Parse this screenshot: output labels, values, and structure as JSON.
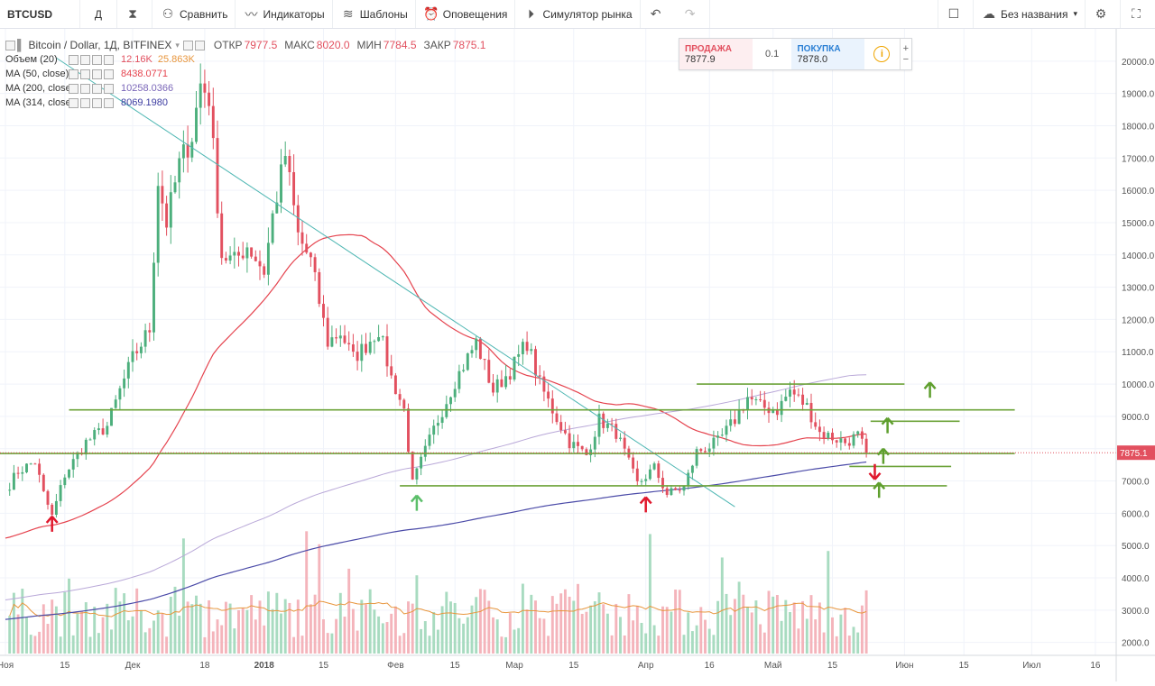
{
  "toolbar": {
    "symbol": "BTCUSD",
    "interval": "Д",
    "compare": "Сравнить",
    "indicators": "Индикаторы",
    "templates": "Шаблоны",
    "alerts": "Оповещения",
    "replay": "Симулятор рынка",
    "layout_name": "Без названия"
  },
  "legend": {
    "title": "Bitcoin / Dollar, 1Д, BITFINEX",
    "open_label": "ОТКР",
    "open": "7977.5",
    "high_label": "МАКС",
    "high": "8020.0",
    "low_label": "МИН",
    "low": "7784.5",
    "close_label": "ЗАКР",
    "close": "7875.1",
    "volume_label": "Объем (20)",
    "volume_value": "12.16K",
    "volume_ma": "25.863K",
    "ma50_label": "MA (50, close)",
    "ma50_value": "8438.0771",
    "ma200_label": "MA (200, close)",
    "ma200_value": "10258.0366",
    "ma314_label": "MA (314, close)",
    "ma314_value": "8069.1980"
  },
  "trade_panel": {
    "sell_label": "ПРОДАЖА",
    "sell_price": "7877.9",
    "qty": "0.1",
    "buy_label": "ПОКУПКА",
    "buy_price": "7878.0",
    "plus": "+",
    "minus": "−"
  },
  "colors": {
    "up": "#4caf7c",
    "down": "#e2505f",
    "ma50": "#e5434e",
    "ma200": "#b9a8d8",
    "ma314": "#4b4ba8",
    "level": "#6da33a",
    "trend": "#4fb7b3"
  },
  "chart_data": {
    "type": "candlestick",
    "title": "Bitcoin / Dollar, 1Д, BITFINEX",
    "ylim": [
      1600,
      21000
    ],
    "yticks": [
      "2000.0",
      "3000.0",
      "4000.0",
      "5000.0",
      "6000.0",
      "7000.0",
      "8000.0",
      "9000.0",
      "10000.0",
      "11000.0",
      "12000.0",
      "13000.0",
      "14000.0",
      "15000.0",
      "16000.0",
      "17000.0",
      "18000.0",
      "19000.0",
      "20000.0"
    ],
    "ytick_values": [
      2000,
      3000,
      4000,
      5000,
      6000,
      7000,
      8000,
      9000,
      10000,
      11000,
      12000,
      13000,
      14000,
      15000,
      16000,
      17000,
      18000,
      19000,
      20000
    ],
    "xticks": [
      {
        "label": "Ноя",
        "date": "2017-11-01"
      },
      {
        "label": "15",
        "date": "2017-11-15"
      },
      {
        "label": "Дек",
        "date": "2017-12-01"
      },
      {
        "label": "18",
        "date": "2017-12-18"
      },
      {
        "label": "2018",
        "date": "2018-01-01"
      },
      {
        "label": "15",
        "date": "2018-01-15"
      },
      {
        "label": "Фев",
        "date": "2018-02-01"
      },
      {
        "label": "15",
        "date": "2018-02-15"
      },
      {
        "label": "Мар",
        "date": "2018-03-01"
      },
      {
        "label": "15",
        "date": "2018-03-15"
      },
      {
        "label": "Апр",
        "date": "2018-04-01"
      },
      {
        "label": "16",
        "date": "2018-04-16"
      },
      {
        "label": "Май",
        "date": "2018-05-01"
      },
      {
        "label": "15",
        "date": "2018-05-15"
      },
      {
        "label": "Июн",
        "date": "2018-06-01"
      },
      {
        "label": "15",
        "date": "2018-06-15"
      },
      {
        "label": "Июл",
        "date": "2018-07-01"
      },
      {
        "label": "16",
        "date": "2018-07-16"
      }
    ],
    "last_price_label": "7875.1",
    "last_price": 7875.1,
    "close_anchors": [
      [
        "2017-11-01",
        6700
      ],
      [
        "2017-11-04",
        7300
      ],
      [
        "2017-11-08",
        7600
      ],
      [
        "2017-11-10",
        6600
      ],
      [
        "2017-11-12",
        5900
      ],
      [
        "2017-11-15",
        7200
      ],
      [
        "2017-11-20",
        8200
      ],
      [
        "2017-11-25",
        8700
      ],
      [
        "2017-11-28",
        9800
      ],
      [
        "2017-12-01",
        10800
      ],
      [
        "2017-12-05",
        11700
      ],
      [
        "2017-12-07",
        16300
      ],
      [
        "2017-12-09",
        15000
      ],
      [
        "2017-12-12",
        16800
      ],
      [
        "2017-12-15",
        17700
      ],
      [
        "2017-12-17",
        19300
      ],
      [
        "2017-12-19",
        18900
      ],
      [
        "2017-12-22",
        14000
      ],
      [
        "2017-12-25",
        13800
      ],
      [
        "2017-12-28",
        14300
      ],
      [
        "2018-01-01",
        13500
      ],
      [
        "2018-01-03",
        15200
      ],
      [
        "2018-01-06",
        17100
      ],
      [
        "2018-01-09",
        14600
      ],
      [
        "2018-01-12",
        13800
      ],
      [
        "2018-01-16",
        11300
      ],
      [
        "2018-01-19",
        11600
      ],
      [
        "2018-01-22",
        10800
      ],
      [
        "2018-01-25",
        11200
      ],
      [
        "2018-01-28",
        11700
      ],
      [
        "2018-01-31",
        10200
      ],
      [
        "2018-02-03",
        9200
      ],
      [
        "2018-02-05",
        6900
      ],
      [
        "2018-02-07",
        7600
      ],
      [
        "2018-02-10",
        8600
      ],
      [
        "2018-02-15",
        10100
      ],
      [
        "2018-02-20",
        11300
      ],
      [
        "2018-02-24",
        9800
      ],
      [
        "2018-02-28",
        10400
      ],
      [
        "2018-03-04",
        11300
      ],
      [
        "2018-03-07",
        10000
      ],
      [
        "2018-03-10",
        9200
      ],
      [
        "2018-03-14",
        8200
      ],
      [
        "2018-03-18",
        7800
      ],
      [
        "2018-03-21",
        8900
      ],
      [
        "2018-03-25",
        8500
      ],
      [
        "2018-03-30",
        6900
      ],
      [
        "2018-04-03",
        7400
      ],
      [
        "2018-04-06",
        6600
      ],
      [
        "2018-04-10",
        6800
      ],
      [
        "2018-04-13",
        7900
      ],
      [
        "2018-04-18",
        8200
      ],
      [
        "2018-04-22",
        8900
      ],
      [
        "2018-04-25",
        9600
      ],
      [
        "2018-04-28",
        9300
      ],
      [
        "2018-05-02",
        9200
      ],
      [
        "2018-05-05",
        9800
      ],
      [
        "2018-05-09",
        9300
      ],
      [
        "2018-05-12",
        8500
      ],
      [
        "2018-05-16",
        8300
      ],
      [
        "2018-05-18",
        8200
      ],
      [
        "2018-05-21",
        8400
      ],
      [
        "2018-05-23",
        7875
      ]
    ],
    "lines": [
      {
        "name": "trend",
        "from": [
          "2017-11-13",
          20100
        ],
        "to": [
          "2018-04-22",
          6200
        ],
        "color": "#4fb7b3"
      },
      {
        "name": "level-9200",
        "from": [
          "2017-11-16",
          9200
        ],
        "to": [
          "2018-06-27",
          9200
        ],
        "color": "#6da33a"
      },
      {
        "name": "level-10000",
        "from": [
          "2018-04-13",
          10000
        ],
        "to": [
          "2018-06-01",
          10000
        ],
        "color": "#6da33a"
      },
      {
        "name": "level-8850",
        "from": [
          "2018-05-24",
          8850
        ],
        "to": [
          "2018-06-14",
          8850
        ],
        "color": "#6da33a"
      },
      {
        "name": "level-7850",
        "from": [
          "2017-10-28",
          7850
        ],
        "to": [
          "2018-06-27",
          7850
        ],
        "color": "#6da33a"
      },
      {
        "name": "level-7450",
        "from": [
          "2018-05-19",
          7450
        ],
        "to": [
          "2018-06-12",
          7450
        ],
        "color": "#6da33a"
      },
      {
        "name": "level-6850",
        "from": [
          "2018-02-02",
          6850
        ],
        "to": [
          "2018-06-11",
          6850
        ],
        "color": "#6da33a"
      }
    ],
    "arrows": [
      {
        "date": "2017-11-12",
        "price": 5650,
        "dir": "up",
        "color": "#e0182d"
      },
      {
        "date": "2018-02-06",
        "price": 6300,
        "dir": "up",
        "color": "#5cbf6a"
      },
      {
        "date": "2018-04-01",
        "price": 6250,
        "dir": "up",
        "color": "#e0182d"
      },
      {
        "date": "2018-05-25",
        "price": 7300,
        "dir": "down",
        "color": "#e0182d"
      },
      {
        "date": "2018-05-26",
        "price": 6700,
        "dir": "up",
        "color": "#5f9f2e"
      },
      {
        "date": "2018-05-27",
        "price": 7750,
        "dir": "up",
        "color": "#5f9f2e"
      },
      {
        "date": "2018-05-28",
        "price": 8700,
        "dir": "up",
        "color": "#5f9f2e"
      },
      {
        "date": "2018-06-07",
        "price": 9800,
        "dir": "up",
        "color": "#5f9f2e"
      }
    ]
  }
}
